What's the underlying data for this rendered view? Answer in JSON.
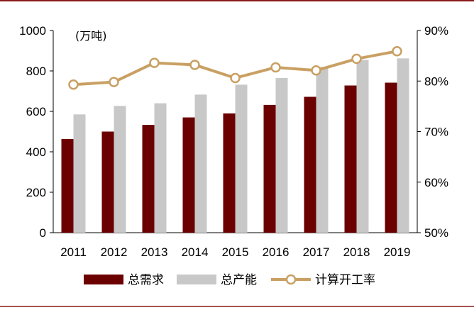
{
  "chart_data": {
    "type": "bar",
    "title": "",
    "categories": [
      "2011",
      "2012",
      "2013",
      "2014",
      "2015",
      "2016",
      "2017",
      "2018",
      "2019"
    ],
    "left_axis": {
      "unit_label": "(万吨)",
      "ylim": [
        0,
        1000
      ],
      "ticks": [
        "0",
        "200",
        "400",
        "600",
        "800",
        "1000"
      ]
    },
    "right_axis": {
      "ylim": [
        50,
        90
      ],
      "ticks": [
        "50%",
        "60%",
        "70%",
        "80%",
        "90%"
      ]
    },
    "series": [
      {
        "name": "总需求",
        "kind": "bar",
        "axis": "left",
        "color": "#6b0000",
        "values": [
          463,
          500,
          533,
          570,
          590,
          632,
          672,
          728,
          742
        ]
      },
      {
        "name": "总产能",
        "kind": "bar",
        "axis": "left",
        "color": "#c8c8c8",
        "values": [
          585,
          627,
          640,
          683,
          732,
          765,
          820,
          855,
          862
        ]
      },
      {
        "name": "计算开工率",
        "kind": "line",
        "axis": "right",
        "color": "#c9a063",
        "values": [
          79.3,
          79.8,
          83.6,
          83.2,
          80.6,
          82.7,
          82.1,
          84.4,
          85.9
        ]
      }
    ],
    "grid": false,
    "legend": "bottom"
  }
}
